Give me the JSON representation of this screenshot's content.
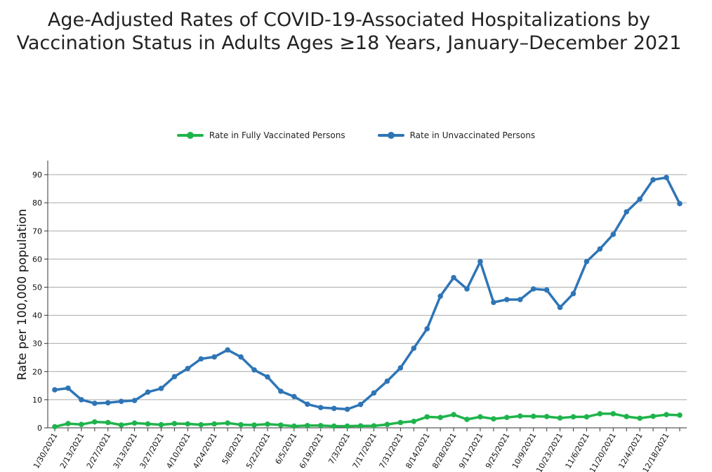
{
  "chart_data": {
    "type": "line",
    "title": "Age-Adjusted Rates of COVID-19-Associated Hospitalizations by Vaccination Status in Adults Ages ≥18 Years, January–December 2021",
    "ylabel": "Rate per 100,000 population",
    "xlabel": "",
    "ylim": [
      0,
      95
    ],
    "yticks": [
      0,
      10,
      20,
      30,
      40,
      50,
      60,
      70,
      80,
      90
    ],
    "grid": true,
    "legend_position": "top-center",
    "x_tick_labels": [
      "1/30/2021",
      "2/13/2021",
      "2/27/2021",
      "3/13/2021",
      "3/27/2021",
      "4/10/2021",
      "4/24/2021",
      "5/8/2021",
      "5/22/2021",
      "6/5/2021",
      "6/19/2021",
      "7/3/2021",
      "7/17/2021",
      "7/31/2021",
      "8/14/2021",
      "8/28/2021",
      "9/11/2021",
      "9/25/2021",
      "10/9/2021",
      "10/23/2021",
      "11/6/2021",
      "11/20/2021",
      "12/4/2021",
      "12/18/2021"
    ],
    "x": [
      "1/30/2021",
      "2/6/2021",
      "2/13/2021",
      "2/20/2021",
      "2/27/2021",
      "3/6/2021",
      "3/13/2021",
      "3/20/2021",
      "3/27/2021",
      "4/3/2021",
      "4/10/2021",
      "4/17/2021",
      "4/24/2021",
      "5/1/2021",
      "5/8/2021",
      "5/15/2021",
      "5/22/2021",
      "5/29/2021",
      "6/5/2021",
      "6/12/2021",
      "6/19/2021",
      "6/26/2021",
      "7/3/2021",
      "7/10/2021",
      "7/17/2021",
      "7/24/2021",
      "7/31/2021",
      "8/7/2021",
      "8/14/2021",
      "8/21/2021",
      "8/28/2021",
      "9/4/2021",
      "9/11/2021",
      "9/18/2021",
      "9/25/2021",
      "10/2/2021",
      "10/9/2021",
      "10/16/2021",
      "10/23/2021",
      "10/30/2021",
      "11/6/2021",
      "11/13/2021",
      "11/20/2021",
      "11/27/2021",
      "12/4/2021",
      "12/11/2021",
      "12/18/2021",
      "12/25/2021"
    ],
    "series": [
      {
        "name": "Rate in Fully Vaccinated Persons",
        "color": "#1fb44b",
        "values": [
          0.4,
          1.5,
          1.2,
          2.1,
          1.9,
          1.0,
          1.7,
          1.4,
          1.1,
          1.5,
          1.4,
          1.1,
          1.4,
          1.7,
          1.1,
          1.0,
          1.3,
          1.0,
          0.6,
          0.8,
          0.8,
          0.6,
          0.6,
          0.7,
          0.7,
          1.2,
          1.9,
          2.3,
          3.9,
          3.7,
          4.7,
          3.0,
          3.9,
          3.2,
          3.7,
          4.2,
          4.1,
          4.0,
          3.5,
          3.9,
          3.9,
          5.0,
          5.0,
          4.0,
          3.4,
          4.1,
          4.7,
          4.5
        ]
      },
      {
        "name": "Rate in Unvaccinated Persons",
        "color": "#2e75b6",
        "values": [
          13.5,
          14.1,
          10.0,
          8.7,
          8.9,
          9.4,
          9.7,
          12.7,
          14.0,
          18.2,
          21.1,
          24.5,
          25.2,
          27.7,
          25.2,
          20.6,
          18.1,
          13.0,
          11.1,
          8.4,
          7.2,
          6.9,
          6.6,
          8.3,
          12.4,
          16.6,
          21.3,
          28.3,
          35.2,
          46.8,
          53.4,
          49.4,
          59.1,
          44.6,
          45.6,
          45.6,
          49.4,
          49.0,
          42.8,
          47.7,
          59.1,
          63.6,
          68.8,
          76.8,
          81.3,
          88.2,
          89.0,
          79.7
        ]
      }
    ]
  }
}
